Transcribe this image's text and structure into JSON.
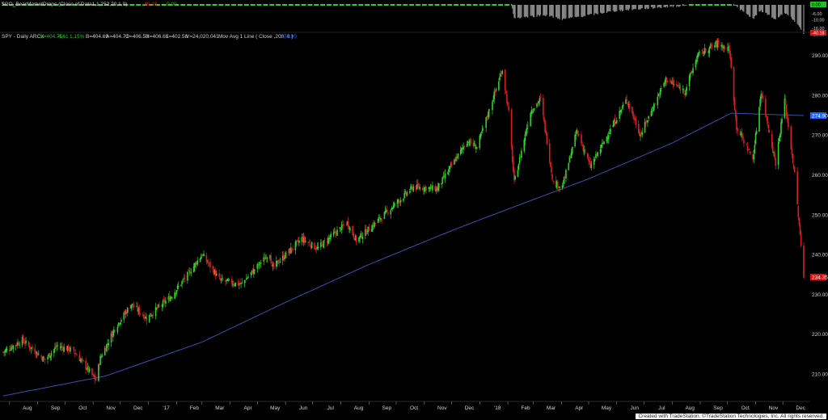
{
  "colors": {
    "background": "#000000",
    "up": "#2fd32a",
    "down": "#d81e1e",
    "moving_average": "#3a4fb0",
    "indicator_bar": "#8a8a8a",
    "label_green": "#1fc21f",
    "label_red": "#e01010",
    "label_blue": "#1e64ff",
    "axis_text": "#cfcfcf"
  },
  "indicator": {
    "title": "$GO_BearMarketDrops (Close of Data1,1,252,20,1,0)",
    "value_red": "-40.18",
    "value_green": "0.00",
    "axis_labels": [
      "0.00",
      "-6.00",
      "-10.00",
      "-16.00",
      "-20.00"
    ],
    "current_label_green": "0.00",
    "current_label_red": "-40.18"
  },
  "header": {
    "symbol": "SPY - Daily  ARCX",
    "last": "L=404.75",
    "change": "4.61",
    "change_pct": "1.15%",
    "bid": "B=404.69",
    "ask": "A=404.71",
    "open": "O=406.53",
    "high": "H=406.63",
    "low": "L=402.58",
    "volume": "V=24,020,041",
    "study": "Mov Avg 1 Line ( Close ,200, 0 )",
    "study_value": "274.90"
  },
  "price_axis": {
    "labels": [
      "290.00",
      "280.00",
      "270.00",
      "260.00",
      "250.00",
      "240.00",
      "230.00",
      "220.00",
      "210.00"
    ],
    "ma_label": "274.90",
    "last_label": "234.35"
  },
  "time_axis": {
    "labels": [
      "Aug",
      "Sep",
      "Oct",
      "Nov",
      "Dec",
      "'17",
      "Feb",
      "Mar",
      "Apr",
      "May",
      "Jun",
      "Jul",
      "Aug",
      "Sep",
      "Oct",
      "Nov",
      "Dec",
      "'18",
      "Feb",
      "Mar",
      "Apr",
      "May",
      "Jun",
      "Jul",
      "Aug",
      "Sep",
      "Oct",
      "Nov",
      "Dec"
    ]
  },
  "footer": "Created with TradeStation. ©TradeStation Technologies, Inc. All rights reserved.",
  "chart_data": {
    "type": "candlestick",
    "symbol": "SPY",
    "interval": "Daily",
    "ylim": [
      205,
      297
    ],
    "x_range": [
      "2016-08",
      "2018-12"
    ],
    "anchor_closes": [
      [
        "2016-07-25",
        215.5
      ],
      [
        "2016-08-15",
        218.5
      ],
      [
        "2016-09-09",
        213.5
      ],
      [
        "2016-09-22",
        217.0
      ],
      [
        "2016-10-10",
        216.0
      ],
      [
        "2016-11-04",
        208.5
      ],
      [
        "2016-11-09",
        214.0
      ],
      [
        "2016-11-25",
        221.5
      ],
      [
        "2016-12-13",
        227.5
      ],
      [
        "2016-12-30",
        224.0
      ],
      [
        "2017-01-26",
        229.5
      ],
      [
        "2017-02-15",
        235.5
      ],
      [
        "2017-03-01",
        240.0
      ],
      [
        "2017-03-21",
        233.5
      ],
      [
        "2017-04-13",
        232.5
      ],
      [
        "2017-05-15",
        240.5
      ],
      [
        "2017-05-17",
        236.5
      ],
      [
        "2017-06-19",
        244.0
      ],
      [
        "2017-07-06",
        241.5
      ],
      [
        "2017-08-08",
        248.0
      ],
      [
        "2017-08-18",
        243.5
      ],
      [
        "2017-09-20",
        250.5
      ],
      [
        "2017-10-20",
        257.0
      ],
      [
        "2017-11-15",
        256.5
      ],
      [
        "2017-12-18",
        268.5
      ],
      [
        "2017-12-29",
        266.9
      ],
      [
        "2018-01-26",
        286.5
      ],
      [
        "2018-02-02",
        275.5
      ],
      [
        "2018-02-08",
        258.0
      ],
      [
        "2018-02-26",
        276.0
      ],
      [
        "2018-03-09",
        279.0
      ],
      [
        "2018-03-23",
        258.0
      ],
      [
        "2018-04-02",
        257.0
      ],
      [
        "2018-04-18",
        271.0
      ],
      [
        "2018-05-03",
        262.0
      ],
      [
        "2018-06-12",
        279.0
      ],
      [
        "2018-06-27",
        270.0
      ],
      [
        "2018-07-25",
        284.0
      ],
      [
        "2018-08-15",
        281.0
      ],
      [
        "2018-08-29",
        290.0
      ],
      [
        "2018-09-20",
        293.0
      ],
      [
        "2018-10-03",
        291.5
      ],
      [
        "2018-10-11",
        272.0
      ],
      [
        "2018-10-29",
        264.0
      ],
      [
        "2018-11-07",
        281.0
      ],
      [
        "2018-11-23",
        263.0
      ],
      [
        "2018-12-03",
        279.0
      ],
      [
        "2018-12-14",
        260.0
      ],
      [
        "2018-12-24",
        234.3
      ]
    ],
    "moving_average_200": {
      "name": "Mov Avg 1 Line ( Close ,200, 0 )",
      "points": [
        [
          "2016-07-25",
          204.5
        ],
        [
          "2016-11-15",
          209.5
        ],
        [
          "2017-03-01",
          218.0
        ],
        [
          "2017-06-01",
          228.0
        ],
        [
          "2017-09-01",
          237.5
        ],
        [
          "2017-12-01",
          246.0
        ],
        [
          "2018-02-08",
          252.0
        ],
        [
          "2018-05-01",
          259.0
        ],
        [
          "2018-08-01",
          268.0
        ],
        [
          "2018-10-05",
          275.5
        ],
        [
          "2018-12-24",
          274.9
        ]
      ]
    },
    "indicator_drawdown_pct": [
      [
        "2016-07-25",
        0.0
      ],
      [
        "2018-02-05",
        0.0
      ],
      [
        "2018-02-08",
        -9.0
      ],
      [
        "2018-03-15",
        -7.0
      ],
      [
        "2018-04-02",
        -10.0
      ],
      [
        "2018-06-01",
        -4.0
      ],
      [
        "2018-08-24",
        0.0
      ],
      [
        "2018-10-08",
        0.0
      ],
      [
        "2018-10-29",
        -9.5
      ],
      [
        "2018-11-07",
        -4.0
      ],
      [
        "2018-11-23",
        -10.0
      ],
      [
        "2018-12-03",
        -5.0
      ],
      [
        "2018-12-14",
        -11.0
      ],
      [
        "2018-12-24",
        -20.0
      ]
    ],
    "annotations": {
      "last_close": 234.35,
      "ma_value": 274.9
    }
  }
}
